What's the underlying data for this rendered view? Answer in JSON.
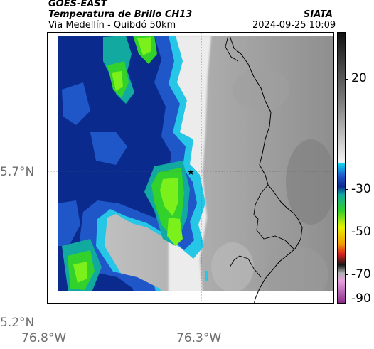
{
  "header": {
    "product": "GOES-EAST",
    "title": "Temperatura de Brillo CH13",
    "subtitle": "Via Medellín - Quibdó 50km",
    "org": "SIATA",
    "datetime": "2024-09-25 10:09"
  },
  "map": {
    "y_ticks": [
      "5.7°N",
      "5.2°N"
    ],
    "x_ticks": [
      "76.8°W",
      "76.3°W"
    ],
    "marker": "star-marker"
  },
  "colorbar": {
    "ticks": [
      "20",
      "-30",
      "-50",
      "-70",
      "-90"
    ],
    "unit_ticks_values": [
      20,
      -30,
      -50,
      -70,
      -90
    ]
  },
  "colors": {
    "cloud_dark_blue": "#0a2a8e",
    "cloud_blue": "#1f56c8",
    "cloud_cyan": "#25c6e6",
    "cloud_teal": "#12a9a0",
    "cloud_green": "#33d12b",
    "cloud_lime": "#7cf01a",
    "land_grey": "#9a9a9a"
  }
}
